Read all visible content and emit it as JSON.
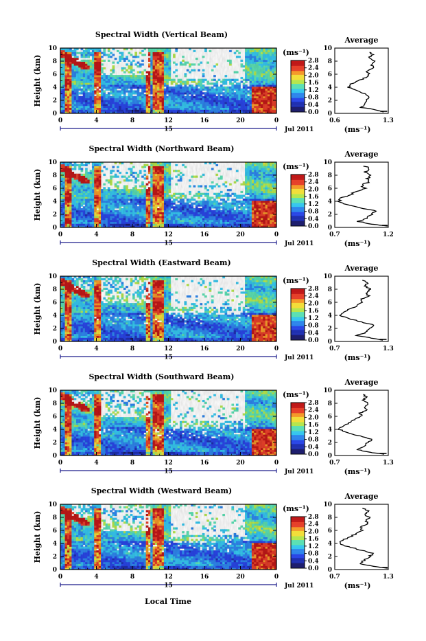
{
  "figure": {
    "bottom_xlabel": "Local Time",
    "date_label": "Jul 2011",
    "day_label": "15",
    "unit_label": "(ms⁻¹)",
    "avg_title": "Average",
    "colormap": [
      "#1e1e6e",
      "#2030b0",
      "#2a46e6",
      "#2f86ec",
      "#36c6ee",
      "#5ce0b4",
      "#b6e64e",
      "#f2de3a",
      "#f49a2a",
      "#e6402a",
      "#c01818"
    ]
  },
  "chart_data": [
    {
      "type": "heatmap",
      "title": "Spectral Width (Vertical Beam)",
      "ylabel": "Height (km)",
      "x_ticks": [
        "0",
        "4",
        "8",
        "12",
        "16",
        "20",
        "0"
      ],
      "y_ticks": [
        "0",
        "2",
        "4",
        "6",
        "8",
        "10"
      ],
      "xlim": [
        0,
        24
      ],
      "ylim": [
        0,
        10
      ],
      "colorbar_ticks": [
        "0.0",
        "0.4",
        "0.8",
        "1.2",
        "1.6",
        "2.0",
        "2.4",
        "2.8"
      ],
      "colorbar_range": [
        0,
        2.8
      ],
      "average_profile": {
        "xlim": [
          0.6,
          1.3
        ],
        "x_ticks": [
          "0.6",
          "1.3"
        ],
        "y_ticks": [
          "0",
          "2",
          "4",
          "6",
          "8",
          "10"
        ],
        "xlabel": "(ms⁻¹)",
        "height": [
          0.2,
          0.5,
          0.9,
          1.4,
          2.0,
          2.5,
          3.0,
          3.5,
          4.0,
          4.5,
          5.0,
          5.5,
          6.0,
          6.5,
          7.0,
          7.5,
          8.0,
          8.5,
          9.0,
          9.5
        ],
        "value": [
          1.25,
          1.15,
          0.95,
          0.98,
          1.02,
          1.05,
          1.0,
          0.88,
          0.78,
          0.8,
          0.92,
          1.0,
          1.05,
          1.02,
          1.1,
          1.08,
          1.12,
          1.05,
          1.1,
          1.02
        ]
      }
    },
    {
      "type": "heatmap",
      "title": "Spectral Width (Northward Beam)",
      "ylabel": "Height (km)",
      "x_ticks": [
        "0",
        "4",
        "8",
        "12",
        "16",
        "20",
        "0"
      ],
      "y_ticks": [
        "0",
        "2",
        "4",
        "6",
        "8",
        "10"
      ],
      "xlim": [
        0,
        24
      ],
      "ylim": [
        0,
        10
      ],
      "colorbar_ticks": [
        "0.0",
        "0.4",
        "0.8",
        "1.2",
        "1.6",
        "2.0",
        "2.4",
        "2.8"
      ],
      "colorbar_range": [
        0,
        2.8
      ],
      "average_profile": {
        "xlim": [
          0.7,
          1.2
        ],
        "x_ticks": [
          "0.7",
          "1.2"
        ],
        "y_ticks": [
          "0",
          "2",
          "4",
          "6",
          "8",
          "10"
        ],
        "xlabel": "(ms⁻¹)",
        "height": [
          0.2,
          0.5,
          0.9,
          1.4,
          2.0,
          2.5,
          3.0,
          3.5,
          4.0,
          4.5,
          5.0,
          5.5,
          6.0,
          6.5,
          7.0,
          7.5,
          8.0,
          8.5,
          9.0,
          9.5
        ],
        "value": [
          1.18,
          1.05,
          0.92,
          1.0,
          1.05,
          1.08,
          0.95,
          0.82,
          0.74,
          0.76,
          0.85,
          0.9,
          0.98,
          0.95,
          1.02,
          1.0,
          1.04,
          0.98,
          1.02,
          0.97
        ]
      }
    },
    {
      "type": "heatmap",
      "title": "Spectral Width (Eastward Beam)",
      "ylabel": "Height (km)",
      "x_ticks": [
        "0",
        "4",
        "8",
        "12",
        "16",
        "20",
        "0"
      ],
      "y_ticks": [
        "0",
        "2",
        "4",
        "6",
        "8",
        "10"
      ],
      "xlim": [
        0,
        24
      ],
      "ylim": [
        0,
        10
      ],
      "colorbar_ticks": [
        "0.0",
        "0.4",
        "0.8",
        "1.2",
        "1.6",
        "2.0",
        "2.4",
        "2.8"
      ],
      "colorbar_range": [
        0,
        2.8
      ],
      "average_profile": {
        "xlim": [
          0.7,
          1.3
        ],
        "x_ticks": [
          "0.7",
          "1.3"
        ],
        "y_ticks": [
          "0",
          "2",
          "4",
          "6",
          "8",
          "10"
        ],
        "xlabel": "(ms⁻¹)",
        "height": [
          0.2,
          0.5,
          0.9,
          1.4,
          2.0,
          2.5,
          3.0,
          3.5,
          4.0,
          4.5,
          5.0,
          5.5,
          6.0,
          6.5,
          7.0,
          7.5,
          8.0,
          8.5,
          9.0,
          9.5
        ],
        "value": [
          1.25,
          1.12,
          0.95,
          1.05,
          1.1,
          1.15,
          1.0,
          0.85,
          0.76,
          0.8,
          0.88,
          0.95,
          1.02,
          1.0,
          1.08,
          1.05,
          1.1,
          1.03,
          1.08,
          1.0
        ]
      }
    },
    {
      "type": "heatmap",
      "title": "Spectral Width (Southward Beam)",
      "ylabel": "Height (km)",
      "x_ticks": [
        "0",
        "4",
        "8",
        "12",
        "16",
        "20",
        "0"
      ],
      "y_ticks": [
        "0",
        "2",
        "4",
        "6",
        "8",
        "10"
      ],
      "xlim": [
        0,
        24
      ],
      "ylim": [
        0,
        10
      ],
      "colorbar_ticks": [
        "0.0",
        "0.4",
        "0.8",
        "1.2",
        "1.6",
        "2.0",
        "2.4",
        "2.8"
      ],
      "colorbar_range": [
        0,
        2.8
      ],
      "average_profile": {
        "xlim": [
          0.7,
          1.3
        ],
        "x_ticks": [
          "0.7",
          "1.3"
        ],
        "y_ticks": [
          "0",
          "2",
          "4",
          "6",
          "8",
          "10"
        ],
        "xlabel": "(ms⁻¹)",
        "height": [
          0.2,
          0.5,
          0.9,
          1.4,
          2.0,
          2.5,
          3.0,
          3.5,
          4.0,
          4.5,
          5.0,
          5.5,
          6.0,
          6.5,
          7.0,
          7.5,
          8.0,
          8.5,
          9.0,
          9.5
        ],
        "value": [
          1.25,
          1.1,
          0.95,
          1.02,
          1.08,
          1.12,
          0.98,
          0.84,
          0.75,
          0.78,
          0.86,
          0.93,
          1.0,
          0.98,
          1.06,
          1.04,
          1.08,
          1.02,
          1.06,
          0.99
        ]
      }
    },
    {
      "type": "heatmap",
      "title": "Spectral Width (Westward Beam)",
      "ylabel": "Height (km)",
      "x_ticks": [
        "0",
        "4",
        "8",
        "12",
        "16",
        "20",
        "0"
      ],
      "y_ticks": [
        "0",
        "2",
        "4",
        "6",
        "8",
        "10"
      ],
      "xlim": [
        0,
        24
      ],
      "ylim": [
        0,
        10
      ],
      "colorbar_ticks": [
        "0.0",
        "0.4",
        "0.8",
        "1.2",
        "1.6",
        "2.0",
        "2.4",
        "2.8"
      ],
      "colorbar_range": [
        0,
        2.8
      ],
      "average_profile": {
        "xlim": [
          0.7,
          1.3
        ],
        "x_ticks": [
          "0.7",
          "1.3"
        ],
        "y_ticks": [
          "0",
          "2",
          "4",
          "6",
          "8",
          "10"
        ],
        "xlabel": "(ms⁻¹)",
        "height": [
          0.2,
          0.5,
          0.9,
          1.4,
          2.0,
          2.5,
          3.0,
          3.5,
          4.0,
          4.5,
          5.0,
          5.5,
          6.0,
          6.5,
          7.0,
          7.5,
          8.0,
          8.5,
          9.0,
          9.5
        ],
        "value": [
          1.28,
          1.15,
          0.97,
          1.03,
          1.09,
          1.13,
          0.99,
          0.85,
          0.76,
          0.79,
          0.87,
          0.94,
          1.01,
          0.99,
          1.07,
          1.05,
          1.09,
          1.03,
          1.07,
          1.0
        ]
      }
    }
  ]
}
